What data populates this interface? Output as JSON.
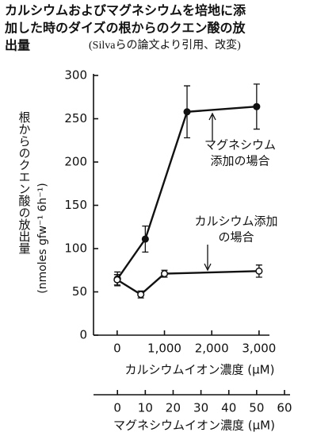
{
  "chart_data": {
    "type": "line",
    "title": [
      "カルシウムおよびマグネシウムを培地に添",
      "加した時のダイズの根からのクエン酸の放",
      "出量"
    ],
    "subtitle": "(Silvaらの論文より引用、改変)",
    "ylabel": "根からのクエン酸の放出量",
    "ylabel_unit": "(nmoles gfw⁻¹ 6h⁻¹)",
    "xlabel": "カルシウムイオン濃度 (μM)",
    "x2label": "マグネシウムイオン濃度 (μM)",
    "ylim": [
      0,
      300
    ],
    "yticks": [
      0,
      50,
      100,
      150,
      200,
      250,
      300
    ],
    "xlim": [
      -500,
      3220
    ],
    "xticks": [
      0,
      {
        "value": 1000,
        "label": "1,000"
      },
      {
        "value": 2000,
        "label": "2,000"
      },
      {
        "value": 3000,
        "label": "3,000"
      }
    ],
    "x2lim": [
      -8.6,
      62
    ],
    "x2ticks": [
      0,
      10,
      20,
      30,
      40,
      50,
      60
    ],
    "series": [
      {
        "name": "マグネシウム添加の場合",
        "axis": "x2",
        "marker": "filled",
        "color": "#111111",
        "x": [
          0,
          10,
          25,
          50
        ],
        "values": [
          65,
          111,
          258,
          264
        ],
        "errors": [
          8,
          15,
          30,
          26
        ]
      },
      {
        "name": "カルシウム添加の場合",
        "axis": "x",
        "marker": "open",
        "color": "#111111",
        "x": [
          0,
          500,
          1000,
          3000
        ],
        "values": [
          64,
          47,
          71,
          74
        ],
        "errors": [
          6,
          4,
          4,
          7
        ]
      }
    ],
    "annotations": [
      [
        "マグネシウム",
        "添加の場合"
      ],
      [
        "カルシウム添加",
        "の場合"
      ]
    ]
  }
}
